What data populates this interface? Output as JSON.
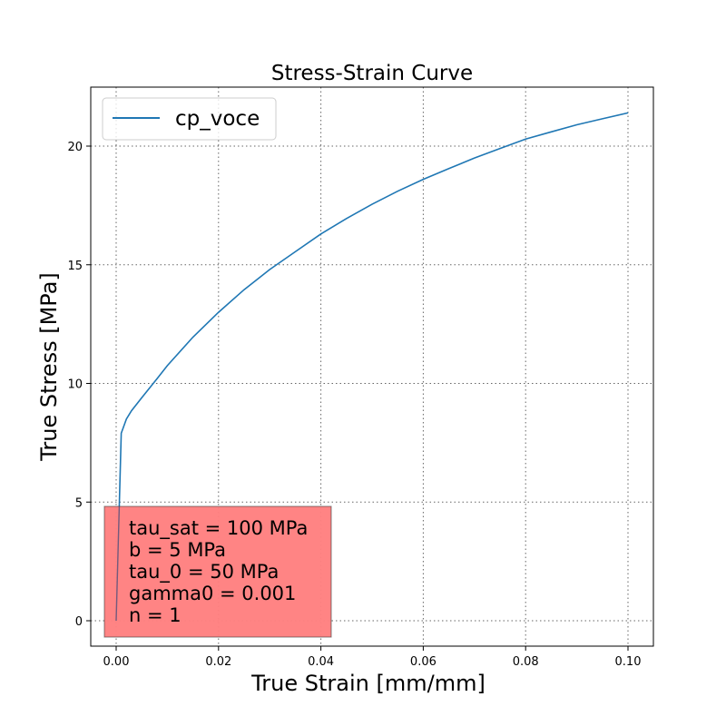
{
  "chart_data": {
    "type": "line",
    "title": "Stress-Strain Curve",
    "xlabel": "True Strain [mm/mm]",
    "ylabel": "True Stress [MPa]",
    "xlim": [
      -0.005,
      0.105
    ],
    "ylim": [
      -1,
      22.5
    ],
    "x_ticks": [
      0.0,
      0.02,
      0.04,
      0.06,
      0.08,
      0.1
    ],
    "x_tick_labels": [
      "0.00",
      "0.02",
      "0.04",
      "0.06",
      "0.08",
      "0.10"
    ],
    "y_ticks": [
      0,
      5,
      10,
      15,
      20
    ],
    "y_tick_labels": [
      "0",
      "5",
      "10",
      "15",
      "20"
    ],
    "grid": true,
    "legend_position": "top-left",
    "series": [
      {
        "name": "cp_voce",
        "color": "#1f77b4",
        "x": [
          0.0,
          0.001,
          0.002,
          0.003,
          0.005,
          0.008,
          0.01,
          0.015,
          0.02,
          0.025,
          0.03,
          0.035,
          0.04,
          0.045,
          0.05,
          0.055,
          0.06,
          0.065,
          0.07,
          0.075,
          0.08,
          0.085,
          0.09,
          0.095,
          0.1
        ],
        "y": [
          0.0,
          7.9,
          8.5,
          8.85,
          9.4,
          10.2,
          10.75,
          11.95,
          13.0,
          13.95,
          14.8,
          15.55,
          16.3,
          16.95,
          17.55,
          18.1,
          18.6,
          19.05,
          19.5,
          19.9,
          20.3,
          20.6,
          20.9,
          21.15,
          21.4
        ]
      }
    ],
    "annotation": {
      "lines": [
        "tau_sat = 100 MPa",
        "b = 5 MPa",
        "tau_0 = 50 MPa",
        "gamma0 = 0.001",
        "n = 1"
      ],
      "box_color": "#ff8080",
      "position": "bottom-left"
    }
  }
}
